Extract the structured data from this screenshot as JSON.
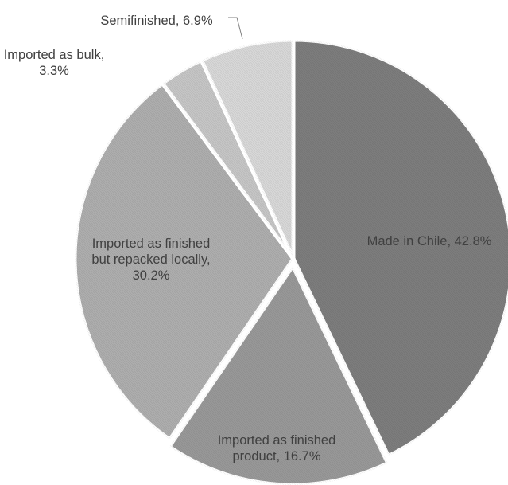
{
  "chart_data": {
    "type": "pie",
    "title": "",
    "categories": [
      "Made in Chile",
      "Imported as finished product",
      "Imported as finished but repacked locally",
      "Imported as bulk",
      "Semifinished"
    ],
    "values": [
      42.8,
      16.7,
      30.2,
      3.3,
      6.9
    ],
    "unit": "%",
    "start_angle_deg": 0,
    "direction": "clockwise",
    "legend": "none",
    "colors": [
      "#7d7d7d",
      "#989898",
      "#aeaeae",
      "#c6c6c6",
      "#d8d8d8"
    ],
    "data_labels": [
      [
        "Made in Chile, 42.8%"
      ],
      [
        "Imported as finished",
        "product, 16.7%"
      ],
      [
        "Imported as finished",
        "but repacked locally,",
        "30.2%"
      ],
      [
        "Imported as bulk,",
        "3.3%"
      ],
      [
        "Semifinished, 6.9%"
      ]
    ]
  }
}
